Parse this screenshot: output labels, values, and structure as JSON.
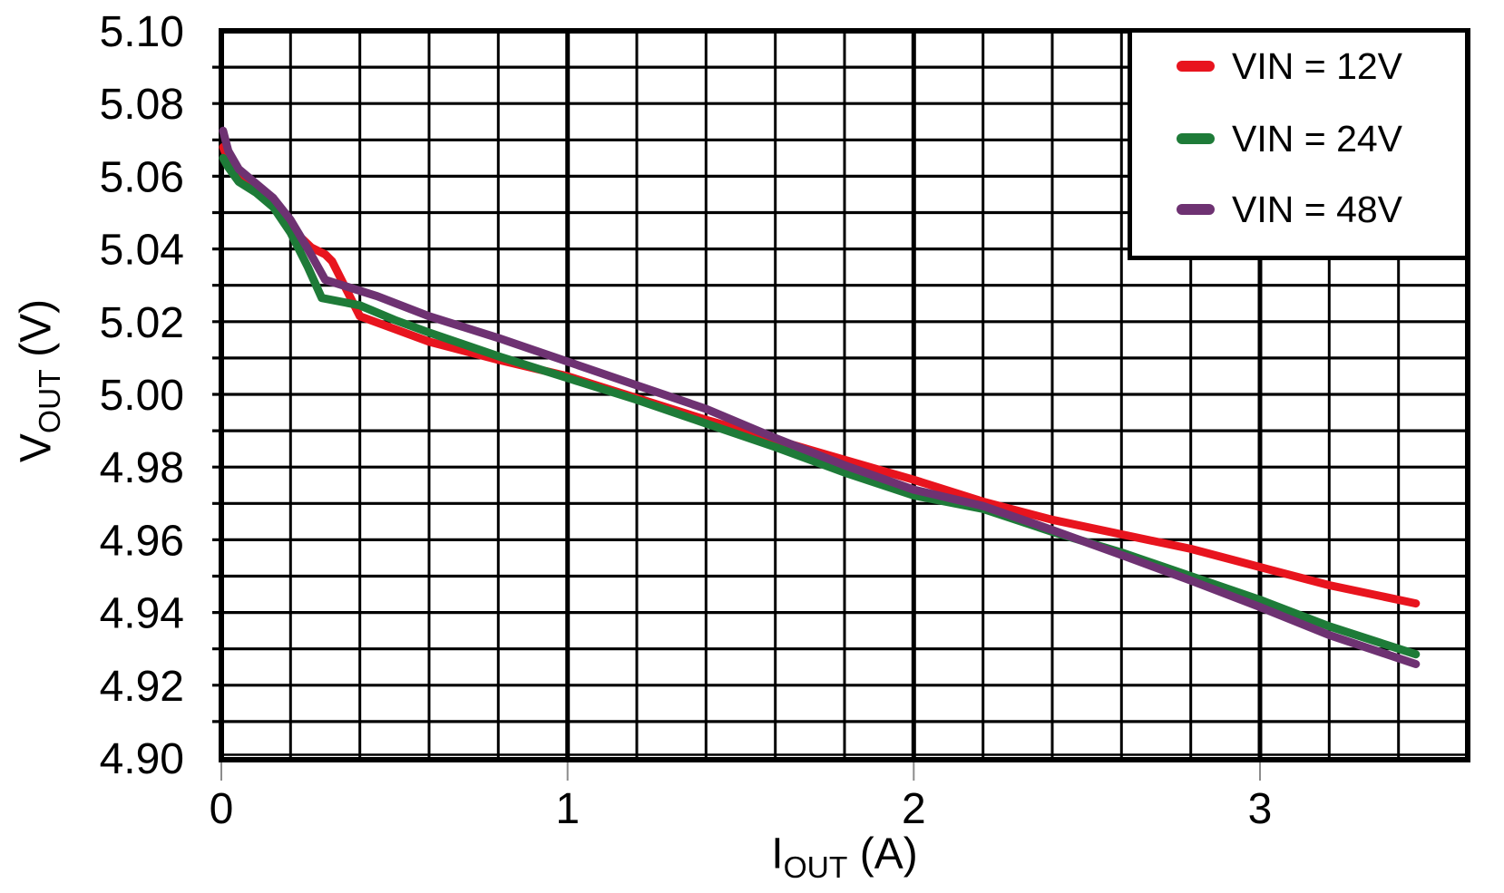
{
  "chart_data": {
    "type": "line",
    "title": "",
    "xlabel_main": "I",
    "xlabel_sub": "OUT",
    "xlabel_suffix": " (A)",
    "ylabel_main": "V",
    "ylabel_sub": "OUT",
    "ylabel_suffix": " (V)",
    "xlim": [
      0,
      3.6
    ],
    "ylim": [
      4.9,
      5.1
    ],
    "grid": true,
    "x_minor_grid_step": 0.2,
    "y_grid_step": 0.01,
    "x_tick_values": [
      0,
      1,
      2,
      3
    ],
    "x_tick_labels": [
      "0",
      "1",
      "2",
      "3"
    ],
    "y_tick_values": [
      5.1,
      5.08,
      5.06,
      5.04,
      5.02,
      5.0,
      4.98,
      4.96,
      4.94,
      4.92,
      4.9
    ],
    "y_tick_labels": [
      "5.10",
      "5.08",
      "5.06",
      "5.04",
      "5.02",
      "5.00",
      "4.98",
      "4.96",
      "4.94",
      "4.92",
      "4.90"
    ],
    "legend_position": "top-right",
    "axis_color": "#000000",
    "tick_mark_color": "#8c8c8c",
    "series": [
      {
        "name": "VIN = 12V",
        "color": "#e8141e",
        "points": [
          [
            0.005,
            5.068
          ],
          [
            0.02,
            5.0645
          ],
          [
            0.05,
            5.0605
          ],
          [
            0.1,
            5.0565
          ],
          [
            0.15,
            5.0525
          ],
          [
            0.2,
            5.0458
          ],
          [
            0.26,
            5.0404
          ],
          [
            0.3,
            5.0385
          ],
          [
            0.32,
            5.0366
          ],
          [
            0.4,
            5.0215
          ],
          [
            0.5,
            5.018
          ],
          [
            0.6,
            5.0145
          ],
          [
            0.8,
            5.0095
          ],
          [
            1.0,
            5.005
          ],
          [
            1.2,
            4.999
          ],
          [
            1.4,
            4.993
          ],
          [
            1.6,
            4.9875
          ],
          [
            1.8,
            4.982
          ],
          [
            2.0,
            4.9765
          ],
          [
            2.2,
            4.9705
          ],
          [
            2.4,
            4.9655
          ],
          [
            2.6,
            4.9615
          ],
          [
            2.8,
            4.9575
          ],
          [
            3.0,
            4.9525
          ],
          [
            3.2,
            4.9475
          ],
          [
            3.45,
            4.9425
          ]
        ]
      },
      {
        "name": "VIN = 24V",
        "color": "#1e7b38",
        "points": [
          [
            0.005,
            5.065
          ],
          [
            0.02,
            5.0625
          ],
          [
            0.05,
            5.0585
          ],
          [
            0.1,
            5.0555
          ],
          [
            0.15,
            5.0515
          ],
          [
            0.2,
            5.0445
          ],
          [
            0.25,
            5.035
          ],
          [
            0.29,
            5.0265
          ],
          [
            0.4,
            5.0245
          ],
          [
            0.5,
            5.0205
          ],
          [
            0.6,
            5.017
          ],
          [
            0.8,
            5.0105
          ],
          [
            1.0,
            5.0045
          ],
          [
            1.2,
            4.9985
          ],
          [
            1.4,
            4.992
          ],
          [
            1.6,
            4.9855
          ],
          [
            1.8,
            4.9785
          ],
          [
            2.0,
            4.9722
          ],
          [
            2.2,
            4.9685
          ],
          [
            2.4,
            4.9622
          ],
          [
            2.6,
            4.9565
          ],
          [
            2.8,
            4.95
          ],
          [
            3.0,
            4.9435
          ],
          [
            3.2,
            4.9362
          ],
          [
            3.45,
            4.9285
          ]
        ]
      },
      {
        "name": "VIN = 48V",
        "color": "#6e3272",
        "points": [
          [
            0.005,
            5.0725
          ],
          [
            0.02,
            5.067
          ],
          [
            0.05,
            5.062
          ],
          [
            0.1,
            5.058
          ],
          [
            0.15,
            5.054
          ],
          [
            0.2,
            5.048
          ],
          [
            0.25,
            5.04
          ],
          [
            0.3,
            5.0315
          ],
          [
            0.45,
            5.027
          ],
          [
            0.6,
            5.0215
          ],
          [
            0.8,
            5.0155
          ],
          [
            1.0,
            5.009
          ],
          [
            1.2,
            5.0025
          ],
          [
            1.4,
            4.996
          ],
          [
            1.6,
            4.988
          ],
          [
            1.8,
            4.9805
          ],
          [
            2.0,
            4.9738
          ],
          [
            2.2,
            4.9693
          ],
          [
            2.4,
            4.9627
          ],
          [
            2.6,
            4.9558
          ],
          [
            2.8,
            4.9488
          ],
          [
            3.0,
            4.9415
          ],
          [
            3.2,
            4.9338
          ],
          [
            3.45,
            4.9258
          ]
        ]
      }
    ]
  }
}
